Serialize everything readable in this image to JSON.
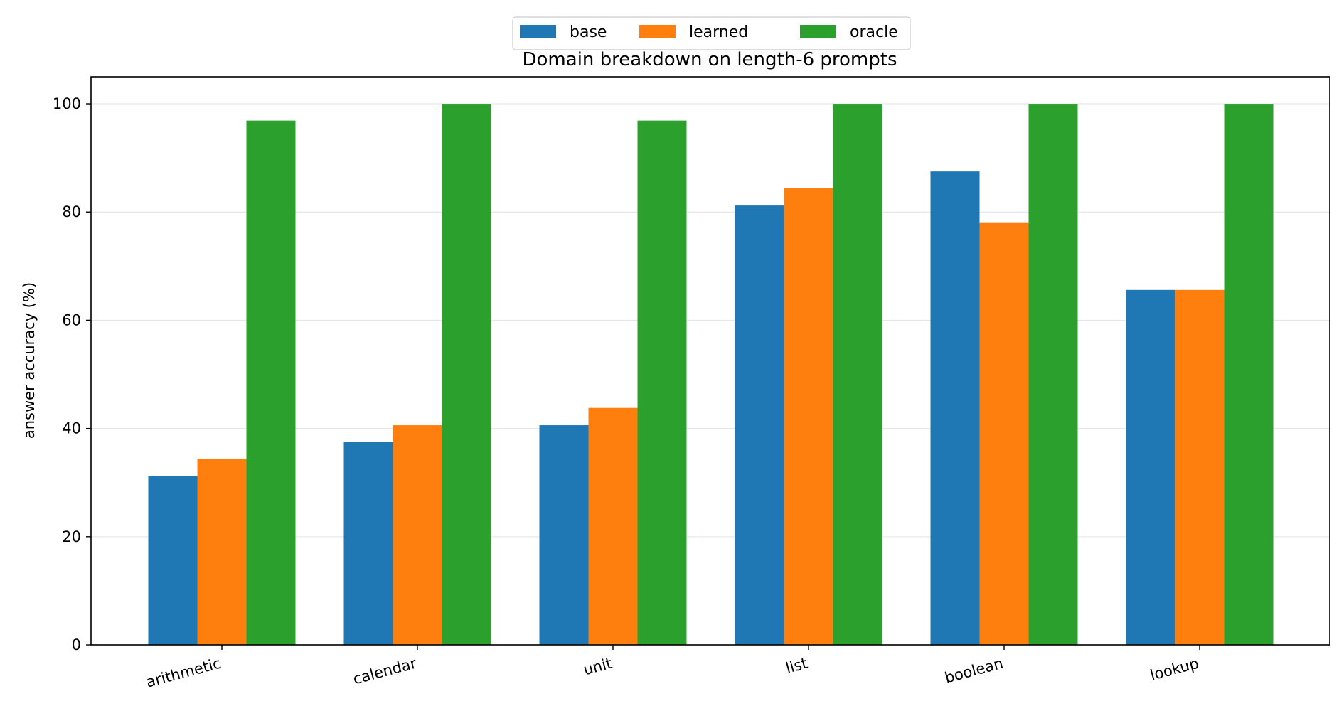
{
  "chart_data": {
    "type": "bar",
    "title": "Domain breakdown on length-6 prompts",
    "xlabel": "",
    "ylabel": "answer accuracy (%)",
    "categories": [
      "arithmetic",
      "calendar",
      "unit",
      "list",
      "boolean",
      "lookup"
    ],
    "series": [
      {
        "name": "base",
        "color": "#1f77b4",
        "values": [
          31.2,
          37.5,
          40.6,
          81.2,
          87.5,
          65.6
        ]
      },
      {
        "name": "learned",
        "color": "#ff7f0e",
        "values": [
          34.4,
          40.6,
          43.8,
          84.4,
          78.1,
          65.6
        ]
      },
      {
        "name": "oracle",
        "color": "#2ca02c",
        "values": [
          96.9,
          100,
          96.9,
          100,
          100,
          100
        ]
      }
    ],
    "ylim": [
      0,
      105
    ],
    "yticks": [
      0,
      20,
      40,
      60,
      80,
      100
    ],
    "grid": "horizontal",
    "legend_position": "top-center"
  }
}
